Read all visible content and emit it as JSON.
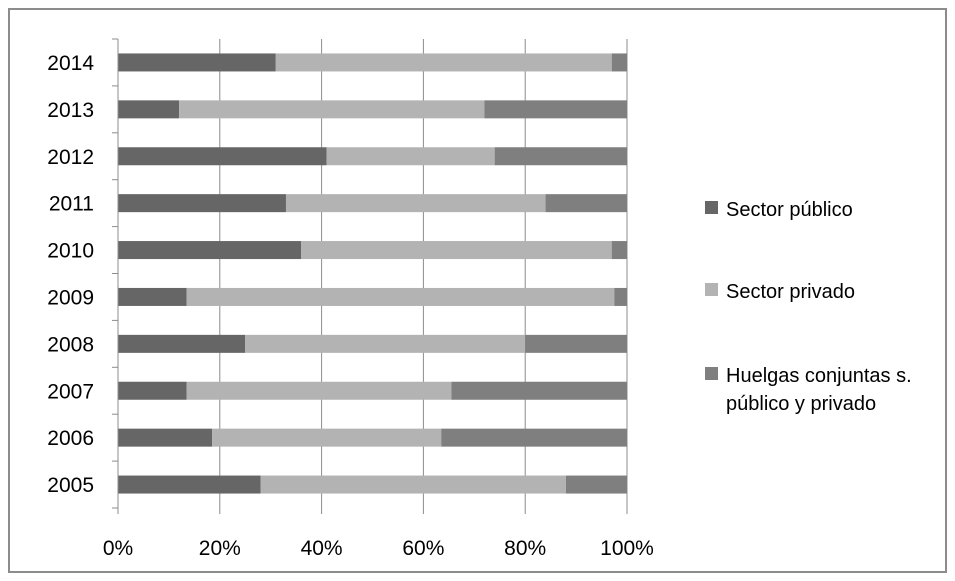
{
  "chart_data": {
    "type": "bar",
    "orientation": "horizontal",
    "stacked": "percent",
    "title": "",
    "xlabel": "",
    "ylabel": "",
    "categories": [
      "2005",
      "2006",
      "2007",
      "2008",
      "2009",
      "2010",
      "2011",
      "2012",
      "2013",
      "2014"
    ],
    "x_ticks": [
      "0%",
      "20%",
      "40%",
      "60%",
      "80%",
      "100%"
    ],
    "xlim": [
      0,
      100
    ],
    "grid": "vertical",
    "legend_position": "right",
    "series": [
      {
        "name": "Sector público",
        "color": "#666666",
        "values": [
          28,
          18.5,
          13.5,
          25,
          13.5,
          36,
          33,
          41,
          12,
          31
        ]
      },
      {
        "name": "Sector privado",
        "color": "#b3b3b3",
        "values": [
          60,
          45,
          52,
          55,
          84,
          61,
          51,
          33,
          60,
          66
        ]
      },
      {
        "name": "Huelgas conjuntas s. público y privado",
        "color": "#7f7f7f",
        "legend_lines": [
          "Huelgas conjuntas s.",
          "público y privado"
        ],
        "values": [
          12,
          36.5,
          34.5,
          20,
          2.5,
          3,
          16,
          26,
          28,
          3
        ]
      }
    ]
  }
}
